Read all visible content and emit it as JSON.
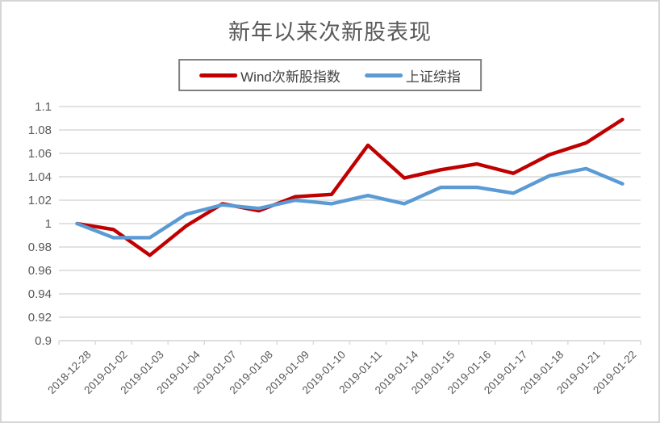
{
  "chart_data": {
    "type": "line",
    "title": "新年以来次新股表现",
    "categories": [
      "2018-12-28",
      "2019-01-02",
      "2019-01-03",
      "2019-01-04",
      "2019-01-07",
      "2019-01-08",
      "2019-01-09",
      "2019-01-10",
      "2019-01-11",
      "2019-01-14",
      "2019-01-15",
      "2019-01-16",
      "2019-01-17",
      "2019-01-18",
      "2019-01-21",
      "2019-01-22"
    ],
    "series": [
      {
        "name": "Wind次新股指数",
        "color": "#C00000",
        "values": [
          1.0,
          0.995,
          0.973,
          0.998,
          1.017,
          1.011,
          1.023,
          1.025,
          1.067,
          1.039,
          1.046,
          1.051,
          1.043,
          1.059,
          1.069,
          1.089
        ]
      },
      {
        "name": "上证综指",
        "color": "#5B9BD5",
        "values": [
          1.0,
          0.988,
          0.988,
          1.008,
          1.016,
          1.013,
          1.02,
          1.017,
          1.024,
          1.017,
          1.031,
          1.031,
          1.026,
          1.041,
          1.047,
          1.034
        ]
      }
    ],
    "xlabel": "",
    "ylabel": "",
    "ylim": [
      0.9,
      1.1
    ],
    "y_tick_step": 0.02,
    "y_tick_labels": [
      "1.1",
      "1.08",
      "1.06",
      "1.04",
      "1.02",
      "1",
      "0.98",
      "0.96",
      "0.94",
      "0.92",
      "0.9"
    ],
    "grid": "horizontal",
    "legend_position": "top",
    "colors": {
      "gridline": "#D9D9D9",
      "axis_line": "#D9D9D9",
      "tick_text": "#595959",
      "title_text": "#595959",
      "legend_border": "#808080",
      "frame_border": "#D6D6D6"
    }
  }
}
